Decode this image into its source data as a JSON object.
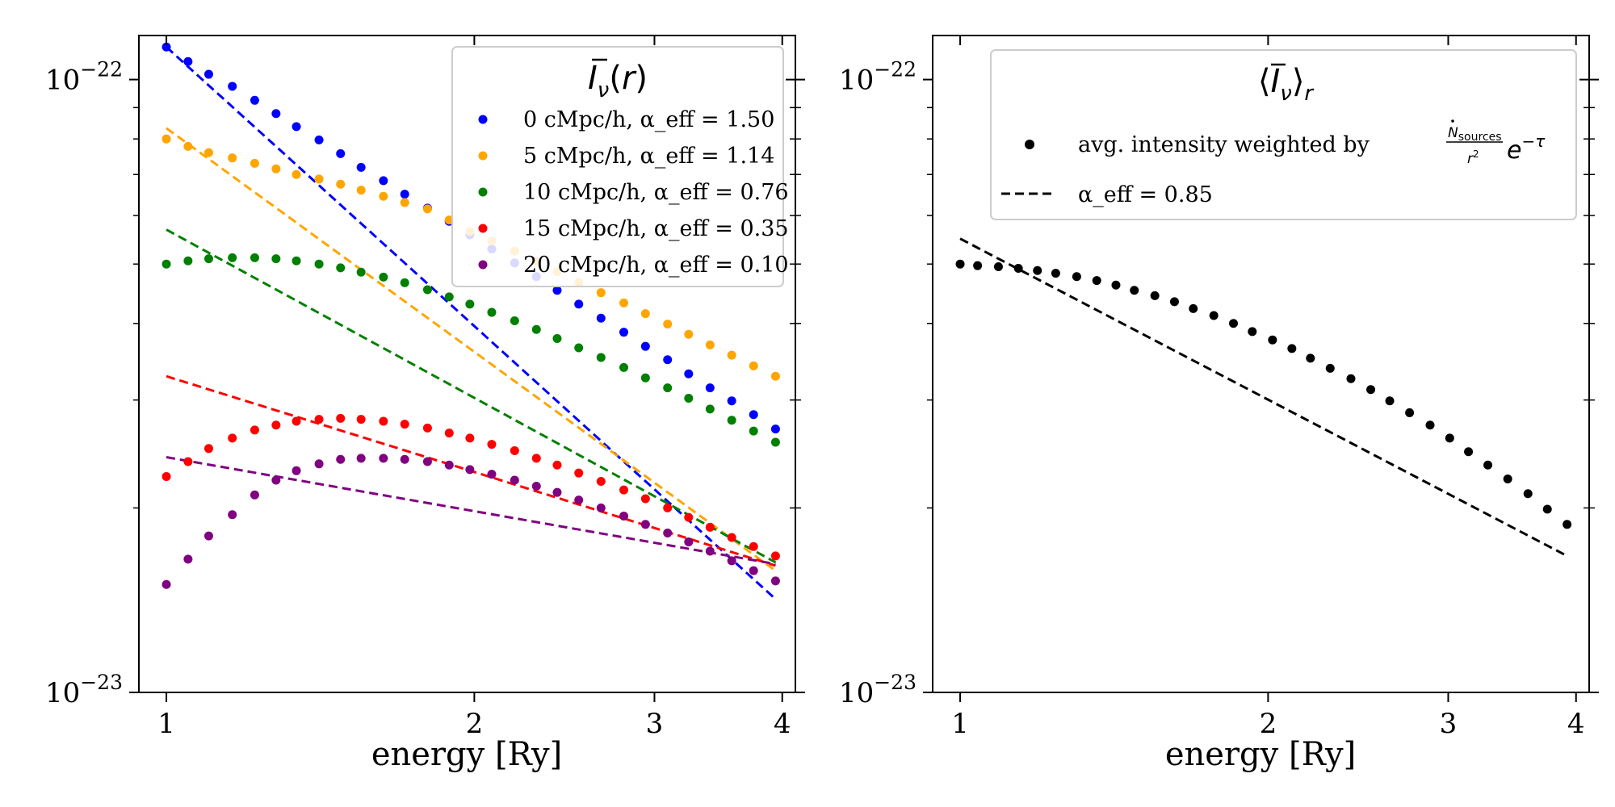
{
  "chart_data": [
    {
      "type": "scatter",
      "xlabel": "energy [Ry]",
      "ylabel": "",
      "xscale": "log",
      "yscale": "log",
      "xlim": [
        0.94,
        4.12
      ],
      "ylim": [
        1e-23,
        1.18e-22
      ],
      "x_ticks": [
        {
          "value": 1,
          "label": "1"
        },
        {
          "value": 2,
          "label": "2"
        },
        {
          "value": 3,
          "label": "3"
        },
        {
          "value": 4,
          "label": "4"
        }
      ],
      "y_ticks": [
        {
          "value": 1e-22,
          "base": "10",
          "exp": "−22"
        },
        {
          "value": 1e-23,
          "base": "10",
          "exp": "−23"
        }
      ],
      "legend": {
        "title": "Ī_ν(r)",
        "placement": "upper right"
      },
      "x": [
        1.0,
        1.05,
        1.1,
        1.16,
        1.22,
        1.28,
        1.34,
        1.41,
        1.48,
        1.55,
        1.63,
        1.71,
        1.8,
        1.89,
        1.98,
        2.08,
        2.19,
        2.3,
        2.41,
        2.53,
        2.66,
        2.8,
        2.94,
        3.09,
        3.24,
        3.4,
        3.57,
        3.75,
        3.94
      ],
      "series": [
        {
          "name": "0 cMpc/h",
          "alpha_label": "α_eff = 1.50",
          "color": "#0000ff",
          "fit_alpha": 1.5,
          "fit_start": 1.13e-22,
          "fit_end": 1.42e-23,
          "values": [
            1.13e-22,
            1.07e-22,
            1.02e-22,
            9.75e-23,
            9.25e-23,
            8.8e-23,
            8.38e-23,
            7.97e-23,
            7.57e-23,
            7.19e-23,
            6.84e-23,
            6.5e-23,
            6.17e-23,
            5.87e-23,
            5.58e-23,
            5.29e-23,
            5.02e-23,
            4.77e-23,
            4.53e-23,
            4.3e-23,
            4.08e-23,
            3.87e-23,
            3.67e-23,
            3.49e-23,
            3.31e-23,
            3.14e-23,
            2.99e-23,
            2.84e-23,
            2.69e-23
          ]
        },
        {
          "name": "5 cMpc/h",
          "alpha_label": "α_eff = 1.14",
          "color": "#ffa500",
          "fit_alpha": 1.14,
          "fit_start": 8.33e-23,
          "fit_end": 1.58e-23,
          "values": [
            8e-23,
            7.78e-23,
            7.6e-23,
            7.45e-23,
            7.3e-23,
            7.15e-23,
            7e-23,
            6.88e-23,
            6.75e-23,
            6.6e-23,
            6.45e-23,
            6.3e-23,
            6.15e-23,
            5.9e-23,
            5.65e-23,
            5.45e-23,
            5.25e-23,
            5.05e-23,
            4.86e-23,
            4.67e-23,
            4.49e-23,
            4.32e-23,
            4.15e-23,
            3.99e-23,
            3.84e-23,
            3.69e-23,
            3.55e-23,
            3.41e-23,
            3.28e-23
          ]
        },
        {
          "name": "10 cMpc/h",
          "alpha_label": "α_eff = 0.76",
          "color": "#008000",
          "fit_alpha": 0.76,
          "fit_start": 5.69e-23,
          "fit_end": 1.63e-23,
          "values": [
            5e-23,
            5.06e-23,
            5.1e-23,
            5.12e-23,
            5.12e-23,
            5.1e-23,
            5.06e-23,
            5e-23,
            4.93e-23,
            4.85e-23,
            4.76e-23,
            4.66e-23,
            4.54e-23,
            4.42e-23,
            4.3e-23,
            4.17e-23,
            4.04e-23,
            3.91e-23,
            3.78e-23,
            3.65e-23,
            3.52e-23,
            3.39e-23,
            3.26e-23,
            3.14e-23,
            3.02e-23,
            2.9e-23,
            2.78e-23,
            2.67e-23,
            2.56e-23
          ]
        },
        {
          "name": "15 cMpc/h",
          "alpha_label": "α_eff = 0.35",
          "color": "#ff0000",
          "fit_alpha": 0.35,
          "fit_start": 3.28e-23,
          "fit_end": 1.61e-23,
          "values": [
            2.25e-23,
            2.38e-23,
            2.5e-23,
            2.6e-23,
            2.68e-23,
            2.73e-23,
            2.77e-23,
            2.79e-23,
            2.8e-23,
            2.79e-23,
            2.77e-23,
            2.74e-23,
            2.7e-23,
            2.65e-23,
            2.6e-23,
            2.54e-23,
            2.48e-23,
            2.41e-23,
            2.35e-23,
            2.28e-23,
            2.21e-23,
            2.14e-23,
            2.07e-23,
            2e-23,
            1.93e-23,
            1.86e-23,
            1.79e-23,
            1.73e-23,
            1.67e-23
          ]
        },
        {
          "name": "20 cMpc/h",
          "alpha_label": "α_eff = 0.10",
          "color": "#800080",
          "fit_alpha": 0.1,
          "fit_start": 2.42e-23,
          "fit_end": 1.62e-23,
          "values": [
            1.5e-23,
            1.65e-23,
            1.8e-23,
            1.95e-23,
            2.1e-23,
            2.22e-23,
            2.3e-23,
            2.36e-23,
            2.4e-23,
            2.41e-23,
            2.41e-23,
            2.4e-23,
            2.38e-23,
            2.35e-23,
            2.31e-23,
            2.27e-23,
            2.22e-23,
            2.17e-23,
            2.12e-23,
            2.06e-23,
            2e-23,
            1.94e-23,
            1.88e-23,
            1.82e-23,
            1.76e-23,
            1.7e-23,
            1.64e-23,
            1.58e-23,
            1.52e-23
          ]
        }
      ]
    },
    {
      "type": "scatter",
      "xlabel": "energy [Ry]",
      "ylabel": "",
      "xscale": "log",
      "yscale": "log",
      "xlim": [
        0.94,
        4.12
      ],
      "ylim": [
        1e-23,
        1.18e-22
      ],
      "x_ticks": [
        {
          "value": 1,
          "label": "1"
        },
        {
          "value": 2,
          "label": "2"
        },
        {
          "value": 3,
          "label": "3"
        },
        {
          "value": 4,
          "label": "4"
        }
      ],
      "y_ticks": [
        {
          "value": 1e-22,
          "base": "10",
          "exp": "−22"
        },
        {
          "value": 1e-23,
          "base": "10",
          "exp": "−23"
        }
      ],
      "legend": {
        "title": "⟨Ī_ν⟩_r",
        "placement": "upper right",
        "points_label_prefix": "avg. intensity weighted by",
        "points_label_formula": "(Ṅ_sources / r²) e^(−τ)",
        "fit_label": "α_eff = 0.85"
      },
      "x": [
        1.0,
        1.04,
        1.09,
        1.14,
        1.19,
        1.24,
        1.3,
        1.36,
        1.42,
        1.48,
        1.55,
        1.62,
        1.69,
        1.77,
        1.85,
        1.93,
        2.02,
        2.11,
        2.2,
        2.3,
        2.41,
        2.52,
        2.63,
        2.75,
        2.88,
        3.01,
        3.14,
        3.28,
        3.43,
        3.59,
        3.75,
        3.92
      ],
      "series": [
        {
          "name": "avg. intensity weighted by (Ṅ_sources / r²) e^(−τ)",
          "color": "#000000",
          "fit_alpha": 0.85,
          "fit_start": 5.5e-23,
          "fit_end": 1.67e-23,
          "values": [
            5e-23,
            4.97e-23,
            4.95e-23,
            4.92e-23,
            4.88e-23,
            4.83e-23,
            4.77e-23,
            4.7e-23,
            4.62e-23,
            4.53e-23,
            4.44e-23,
            4.34e-23,
            4.23e-23,
            4.12e-23,
            4e-23,
            3.88e-23,
            3.76e-23,
            3.64e-23,
            3.51e-23,
            3.38e-23,
            3.25e-23,
            3.12e-23,
            2.99e-23,
            2.86e-23,
            2.73e-23,
            2.6e-23,
            2.47e-23,
            2.35e-23,
            2.23e-23,
            2.11e-23,
            1.99e-23,
            1.88e-23
          ]
        }
      ]
    }
  ]
}
